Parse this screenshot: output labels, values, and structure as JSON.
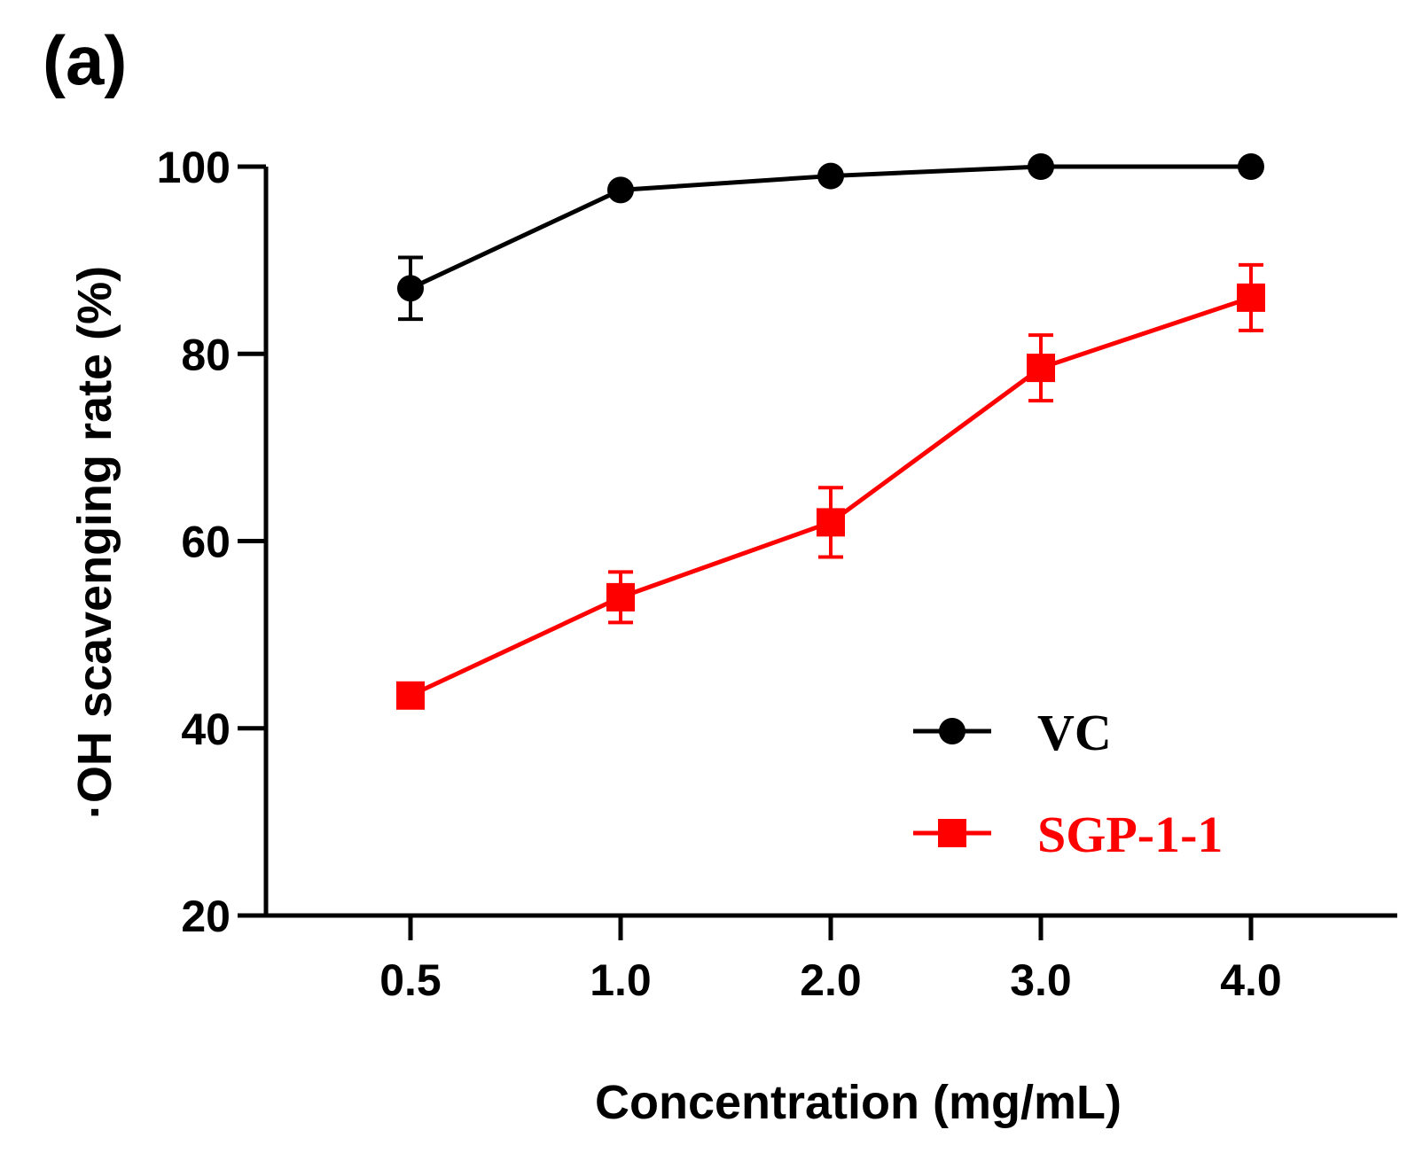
{
  "panel_label": "(a)",
  "chart_data": {
    "type": "line",
    "categories": [
      "0.5",
      "1.0",
      "2.0",
      "3.0",
      "4.0"
    ],
    "xlabel": "Concentration (mg/mL)",
    "ylabel": "·OH scavenging rate (%)",
    "ylim": [
      20,
      100
    ],
    "yticks": [
      20,
      40,
      60,
      80,
      100
    ],
    "grid": false,
    "legend_position": "lower-right",
    "series": [
      {
        "name": "VC",
        "color": "#000000",
        "marker": "circle",
        "values": [
          87.0,
          97.5,
          99.0,
          100.0,
          100.0
        ],
        "errors": [
          3.3,
          0.0,
          0.0,
          0.0,
          0.0
        ]
      },
      {
        "name": "SGP-1-1",
        "color": "#ff0000",
        "marker": "square",
        "values": [
          43.5,
          54.0,
          62.0,
          78.5,
          86.0
        ],
        "errors": [
          0.0,
          2.7,
          3.7,
          3.5,
          3.5
        ]
      }
    ]
  }
}
